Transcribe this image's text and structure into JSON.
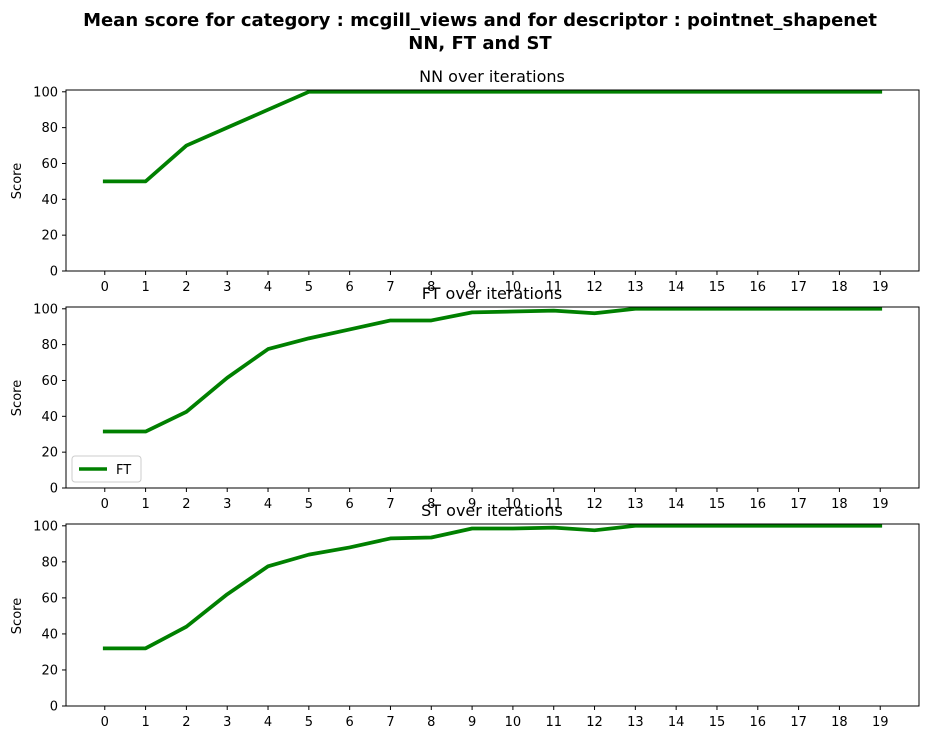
{
  "figure": {
    "suptitle_line1": "Mean score for category : mcgill_views and for descriptor : pointnet_shapenet",
    "suptitle_line2": "NN, FT and ST"
  },
  "chart_data": [
    {
      "type": "line",
      "title": "NN over iterations",
      "xlabel": "",
      "ylabel": "Score",
      "x": [
        0,
        1,
        2,
        3,
        4,
        5,
        6,
        7,
        8,
        9,
        10,
        11,
        12,
        13,
        14,
        15,
        16,
        17,
        18,
        19
      ],
      "xlim": [
        -0.95,
        19.95
      ],
      "ylim": [
        0,
        101
      ],
      "yticks": [
        0,
        20,
        40,
        60,
        80,
        100
      ],
      "grid": false,
      "series": [
        {
          "name": "",
          "color": "#008000",
          "values": [
            50,
            50,
            70,
            80,
            90,
            100,
            100,
            100,
            100,
            100,
            100,
            100,
            100,
            100,
            100,
            100,
            100,
            100,
            100,
            100
          ]
        }
      ]
    },
    {
      "type": "line",
      "title": "FT over iterations",
      "xlabel": "",
      "ylabel": "Score",
      "x": [
        0,
        1,
        2,
        3,
        4,
        5,
        6,
        7,
        8,
        9,
        10,
        11,
        12,
        13,
        14,
        15,
        16,
        17,
        18,
        19
      ],
      "xlim": [
        -0.95,
        19.95
      ],
      "ylim": [
        0,
        101
      ],
      "yticks": [
        0,
        20,
        40,
        60,
        80,
        100
      ],
      "grid": false,
      "legend": "lower-left",
      "series": [
        {
          "name": "FT",
          "color": "#008000",
          "values": [
            31.5,
            31.5,
            42.5,
            61.5,
            77.5,
            83.5,
            88.5,
            93.5,
            93.5,
            98,
            98.5,
            99,
            97.5,
            100,
            100,
            100,
            100,
            100,
            100,
            100
          ]
        }
      ]
    },
    {
      "type": "line",
      "title": "ST over iterations",
      "xlabel": "",
      "ylabel": "Score",
      "x": [
        0,
        1,
        2,
        3,
        4,
        5,
        6,
        7,
        8,
        9,
        10,
        11,
        12,
        13,
        14,
        15,
        16,
        17,
        18,
        19
      ],
      "xlim": [
        -0.95,
        19.95
      ],
      "ylim": [
        0,
        101
      ],
      "yticks": [
        0,
        20,
        40,
        60,
        80,
        100
      ],
      "grid": false,
      "series": [
        {
          "name": "",
          "color": "#008000",
          "values": [
            32,
            32,
            44,
            62,
            77.5,
            84,
            88,
            93,
            93.5,
            98.5,
            98.5,
            99,
            97.5,
            100,
            100,
            100,
            100,
            100,
            100,
            100
          ]
        }
      ]
    }
  ]
}
